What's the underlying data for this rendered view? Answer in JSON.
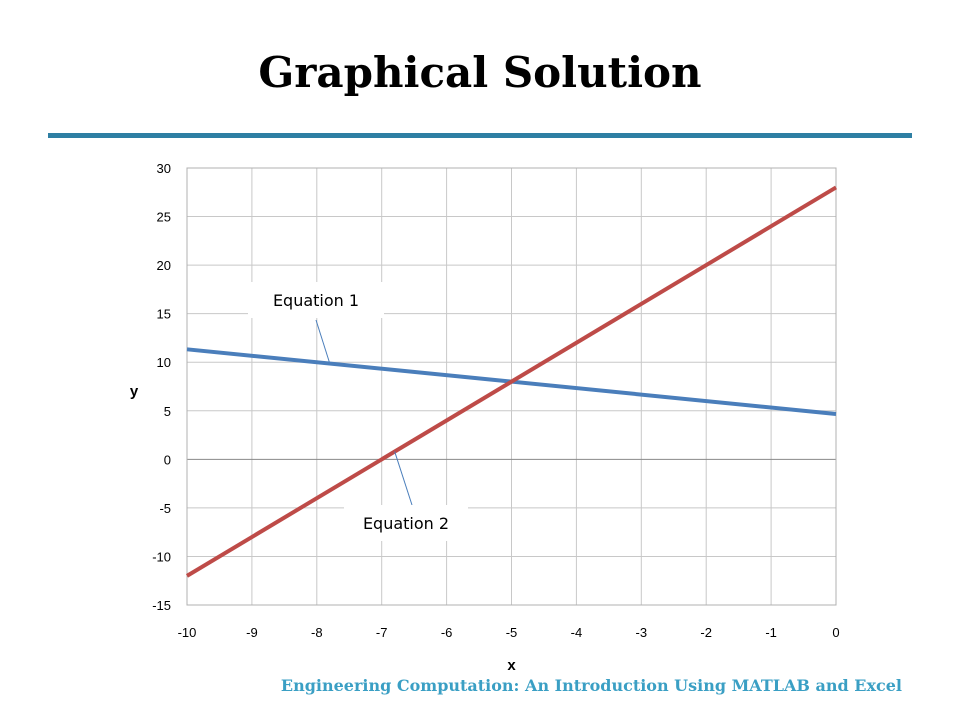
{
  "slide": {
    "title": "Graphical Solution",
    "footer": "Engineering Computation: An Introduction Using MATLAB and Excel",
    "rule_color": "#2e7fa3",
    "footer_color": "#3a9fc4"
  },
  "chart_data": {
    "type": "line",
    "title": "",
    "xlabel": "x",
    "ylabel": "y",
    "xlim": [
      -10,
      0
    ],
    "ylim": [
      -15,
      30
    ],
    "xticks": [
      -10,
      -9,
      -8,
      -7,
      -6,
      -5,
      -4,
      -3,
      -2,
      -1,
      0
    ],
    "yticks": [
      -15,
      -10,
      -5,
      0,
      5,
      10,
      15,
      20,
      25,
      30
    ],
    "grid": true,
    "series": [
      {
        "name": "Equation 1",
        "color": "#4a7ebb",
        "x": [
          -10,
          0
        ],
        "y": [
          11.33,
          4.67
        ]
      },
      {
        "name": "Equation 2",
        "color": "#be4b48",
        "x": [
          -10,
          0
        ],
        "y": [
          -12,
          28
        ]
      }
    ],
    "annotations": [
      {
        "text": "Equation 1",
        "series": 0
      },
      {
        "text": "Equation 2",
        "series": 1
      }
    ]
  }
}
